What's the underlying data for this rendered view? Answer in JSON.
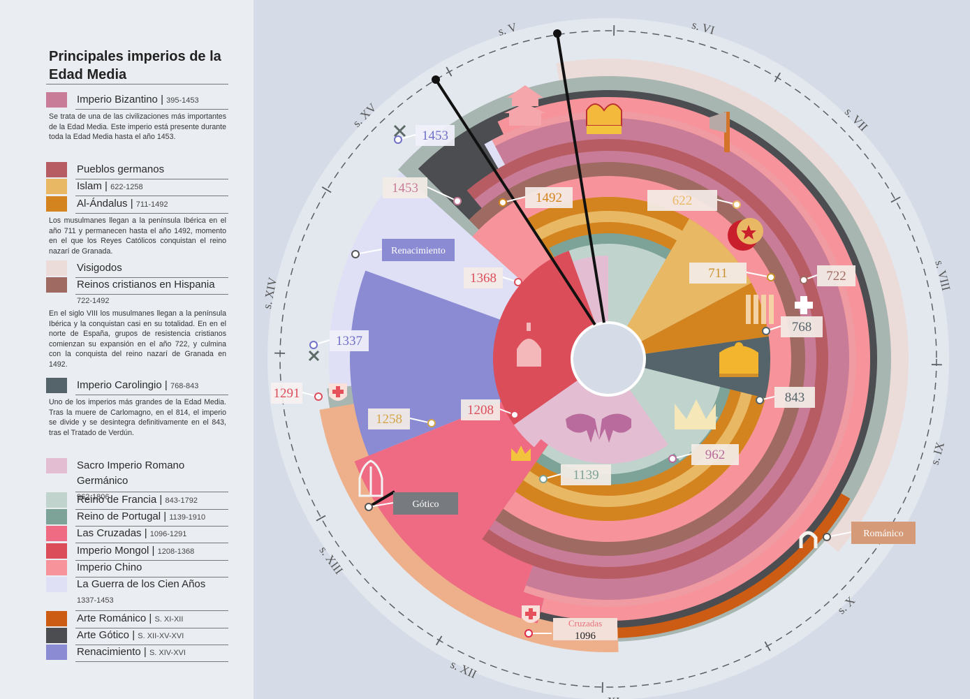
{
  "title": "Principales imperios de la Edad Media",
  "legend": [
    {
      "name": "Imperio Bizantino",
      "dates": "395-1453",
      "color": "#c97c97"
    },
    {
      "name": "Pueblos germanos",
      "dates": "",
      "color": "#b85c63"
    },
    {
      "name": "Islam",
      "dates": "622-1258",
      "color": "#e9b865"
    },
    {
      "name": "Al-Ándalus",
      "dates": "711-1492",
      "color": "#d4841f"
    },
    {
      "name": "Visigodos",
      "dates": "",
      "color": "#ebdbd9"
    },
    {
      "name": "Reinos cristianos en Hispania",
      "dates": "722-1492",
      "color": "#9e6a62"
    },
    {
      "name": "Imperio Carolingio",
      "dates": "768-843",
      "color": "#55646a"
    },
    {
      "name": "Sacro Imperio Romano Germánico",
      "dates": "962-1806",
      "color": "#e3bdd2"
    },
    {
      "name": "Reino de Francia",
      "dates": "843-1792",
      "color": "#c0d4cd"
    },
    {
      "name": "Reino de Portugal",
      "dates": "1139-1910",
      "color": "#7da297"
    },
    {
      "name": "Las Cruzadas",
      "dates": "1096-1291",
      "color": "#ee6b83"
    },
    {
      "name": "Imperio Mongol",
      "dates": "1208-1368",
      "color": "#dc4d5a"
    },
    {
      "name": "Imperio Chino",
      "dates": "",
      "color": "#f7939a"
    },
    {
      "name": "La Guerra de los Cien Años",
      "dates": "1337-1453",
      "color": "#dfe0f5"
    },
    {
      "name": "Arte Románico",
      "dates": "S. XI-XII",
      "color": "#cc5c13"
    },
    {
      "name": "Arte Gótico",
      "dates": "S. XII-XV-XVI",
      "color": "#4b4d50"
    },
    {
      "name": "Renacimiento",
      "dates": "S. XIV-XVI",
      "color": "#8a8bd3"
    }
  ],
  "descriptions": {
    "bizantino": "Se trata de una de las civilizaciones más importantes de la Edad Media. Este imperio está presente durante toda la Edad Media hasta el año 1453.",
    "islam": "Los musulmanes llegan a la península Ibérica en el año 711 y permanecen hasta el año 1492, momento en el que los Reyes Católicos conquistan el reino nazarí de Granada.",
    "reinos": "En el siglo VIII los musulmanes llegan a la península Ibérica y la conquistan casi en su totalidad. En en el norte de España, grupos de resistencia cristianos comienzan su expansión en el año 722, y culmina con la conquista del reino nazarí de Granada en 1492.",
    "carolingio": "Uno de los imperios más grandes de la Edad Media. Tras la muere de Carlomagno, en el 814, el imperio se divide y se desintegra definitivamente en el 843, tras el Tratado de Verdún."
  },
  "centuries": [
    "s. V",
    "s. VI",
    "s. VII",
    "s. VIII",
    "s. IX",
    "s. X",
    "s. XI",
    "s. XII",
    "s. XIII",
    "s. XIV",
    "s. XV"
  ],
  "year_labels": {
    "y622": "622",
    "y711": "711",
    "y722": "722",
    "y768": "768",
    "y843": "843",
    "y962": "962",
    "y1139": "1139",
    "y1208": "1208",
    "y1258": "1258",
    "y1368": "1368",
    "y1492": "1492",
    "y1453a": "1453",
    "y1453b": "1453",
    "y1337": "1337",
    "y1291": "1291",
    "y1096": "1096"
  },
  "period_labels": {
    "renacimiento": "Renacimiento",
    "gotico": "Gótico",
    "romanico": "Románico",
    "cruzadas": "Cruzadas"
  },
  "icons": [
    "crown-icon",
    "imperial-crown-icon",
    "crescent-star-icon",
    "axe-icon",
    "pagoda-icon",
    "mongol-helmet-icon",
    "eagle-icon",
    "cross-shield-icon",
    "gothic-window-icon",
    "romanesque-arch-icon",
    "crossed-swords-icon",
    "fleur-crown-icon"
  ]
}
